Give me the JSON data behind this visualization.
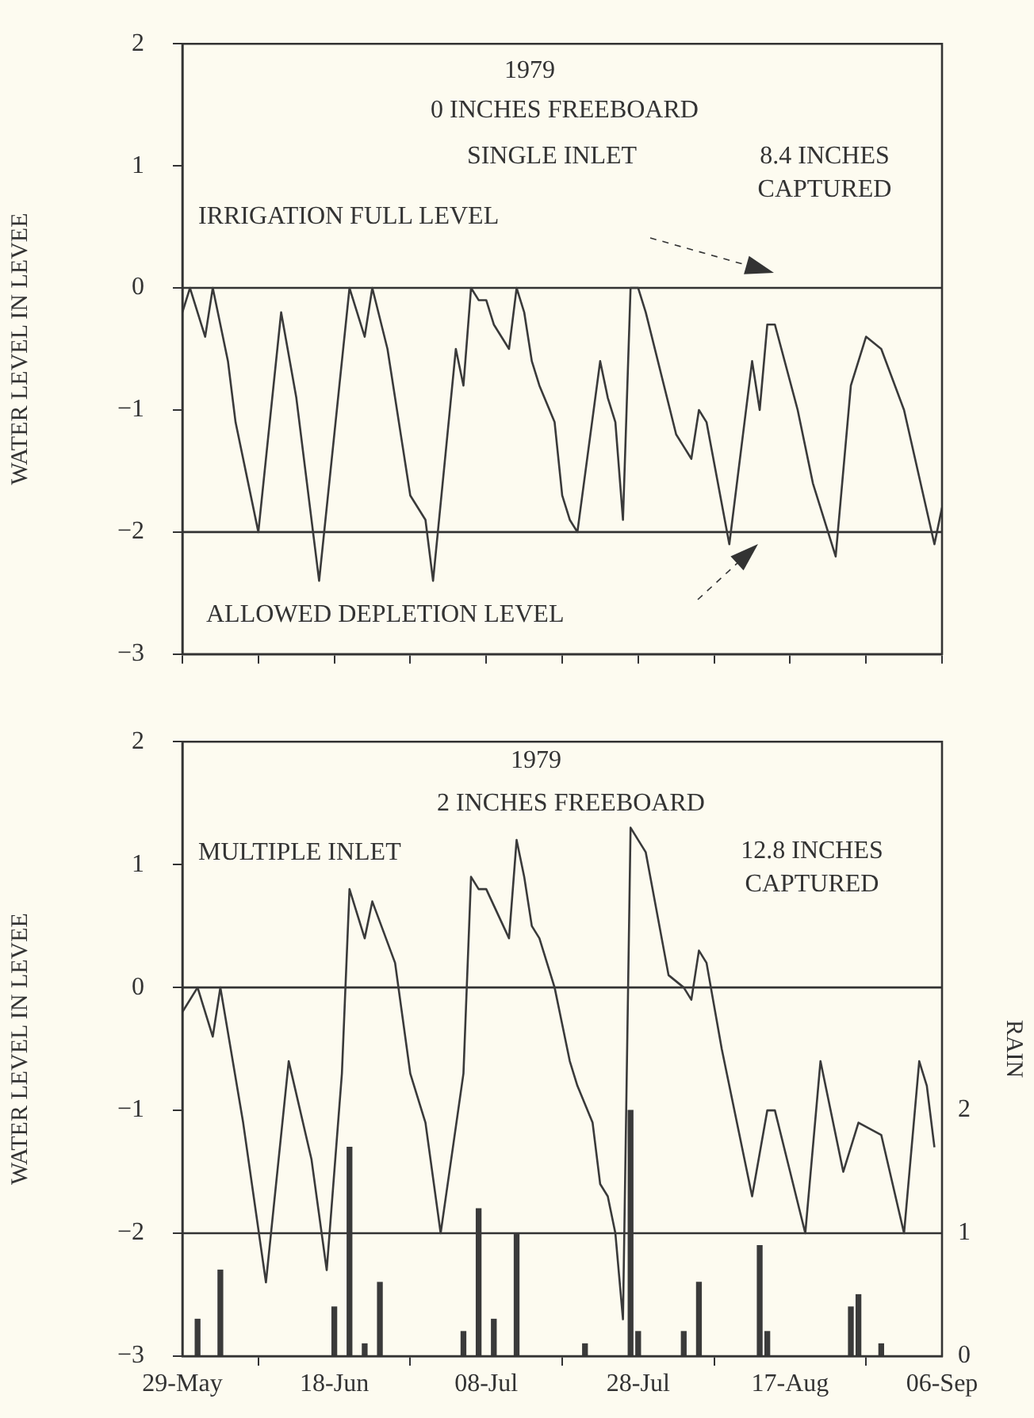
{
  "chart_data": [
    {
      "type": "line",
      "ylabel": "WATER LEVEL IN LEVEE",
      "annotations": [
        "1979",
        "0 INCHES FREEBOARD",
        "SINGLE INLET",
        "8.4 INCHES CAPTURED"
      ],
      "xlim": [
        "1979-05-29",
        "1979-09-06"
      ],
      "xticks": [
        {
          "value": "1979-05-29",
          "label": null
        },
        {
          "value": "1979-06-08",
          "label": null
        },
        {
          "value": "1979-06-18",
          "label": null
        },
        {
          "value": "1979-06-28",
          "label": null
        },
        {
          "value": "1979-07-08",
          "label": null
        },
        {
          "value": "1979-07-18",
          "label": null
        },
        {
          "value": "1979-07-28",
          "label": null
        },
        {
          "value": "1979-08-07",
          "label": null
        },
        {
          "value": "1979-08-17",
          "label": null
        },
        {
          "value": "1979-08-27",
          "label": null
        },
        {
          "value": "1979-09-06",
          "label": null
        }
      ],
      "ylim": [
        -3,
        2
      ],
      "yticks": [
        -3,
        -2,
        -1,
        0,
        1,
        2
      ],
      "grid": false,
      "tick_labels": "y",
      "ref_lines": [
        {
          "axis": "y",
          "value": 0,
          "label": "IRRIGATION FULL LEVEL"
        },
        {
          "axis": "y",
          "value": -2,
          "label": "ALLOWED DEPLETION LEVEL"
        }
      ],
      "series": [
        {
          "color": "#3a3a3a",
          "x": [
            "1979-05-29",
            "1979-05-30",
            "1979-06-01",
            "1979-06-02",
            "1979-06-04",
            "1979-06-05",
            "1979-06-08",
            "1979-06-11",
            "1979-06-13",
            "1979-06-16",
            "1979-06-20",
            "1979-06-22",
            "1979-06-23",
            "1979-06-25",
            "1979-06-28",
            "1979-06-30",
            "1979-07-01",
            "1979-07-04",
            "1979-07-05",
            "1979-07-06",
            "1979-07-07",
            "1979-07-08",
            "1979-07-09",
            "1979-07-11",
            "1979-07-12",
            "1979-07-13",
            "1979-07-14",
            "1979-07-15",
            "1979-07-17",
            "1979-07-18",
            "1979-07-19",
            "1979-07-20",
            "1979-07-23",
            "1979-07-24",
            "1979-07-25",
            "1979-07-26",
            "1979-07-27",
            "1979-07-28",
            "1979-07-29",
            "1979-08-02",
            "1979-08-03",
            "1979-08-04",
            "1979-08-05",
            "1979-08-06",
            "1979-08-09",
            "1979-08-12",
            "1979-08-13",
            "1979-08-14",
            "1979-08-15",
            "1979-08-18",
            "1979-08-20",
            "1979-08-23",
            "1979-08-25",
            "1979-08-27",
            "1979-08-29",
            "1979-09-01",
            "1979-09-05",
            "1979-09-06"
          ],
          "values": [
            -0.2,
            0,
            -0.4,
            0,
            -0.6,
            -1.1,
            -2.0,
            -0.2,
            -0.9,
            -2.4,
            0,
            -0.4,
            0,
            -0.5,
            -1.7,
            -1.9,
            -2.4,
            -0.5,
            -0.8,
            0,
            -0.1,
            -0.1,
            -0.3,
            -0.5,
            0,
            -0.2,
            -0.6,
            -0.8,
            -1.1,
            -1.7,
            -1.9,
            -2.0,
            -0.6,
            -0.9,
            -1.1,
            -1.9,
            0,
            0,
            -0.2,
            -1.2,
            -1.3,
            -1.4,
            -1.0,
            -1.1,
            -2.1,
            -0.6,
            -1.0,
            -0.3,
            -0.3,
            -1.0,
            -1.6,
            -2.2,
            -0.8,
            -0.4,
            -0.5,
            -1.0,
            -2.1,
            -1.8
          ]
        }
      ]
    },
    {
      "type": "line",
      "ylabel": "WATER LEVEL IN LEVEE",
      "y2label": "RAIN",
      "annotations": [
        "1979",
        "2 INCHES FREEBOARD",
        "MULTIPLE INLET",
        "12.8 INCHES CAPTURED"
      ],
      "xlim": [
        "1979-05-29",
        "1979-09-06"
      ],
      "xticks": [
        {
          "value": "1979-05-29",
          "label": "29-May"
        },
        {
          "value": "1979-06-18",
          "label": "18-Jun"
        },
        {
          "value": "1979-07-08",
          "label": "08-Jul"
        },
        {
          "value": "1979-07-28",
          "label": "28-Jul"
        },
        {
          "value": "1979-08-17",
          "label": "17-Aug"
        },
        {
          "value": "1979-09-06",
          "label": "06-Sep"
        }
      ],
      "ylim": [
        -3,
        2
      ],
      "yticks": [
        -3,
        -2,
        -1,
        0,
        1,
        2
      ],
      "y2lim": [
        0,
        5
      ],
      "y2ticks": [
        0,
        1,
        2
      ],
      "grid": false,
      "ref_lines": [
        {
          "axis": "y",
          "value": 0
        },
        {
          "axis": "y",
          "value": -2
        }
      ],
      "series": [
        {
          "color": "#3a3a3a",
          "x": [
            "1979-05-29",
            "1979-05-31",
            "1979-06-02",
            "1979-06-03",
            "1979-06-06",
            "1979-06-09",
            "1979-06-12",
            "1979-06-15",
            "1979-06-17",
            "1979-06-19",
            "1979-06-20",
            "1979-06-22",
            "1979-06-23",
            "1979-06-26",
            "1979-06-28",
            "1979-06-30",
            "1979-07-02",
            "1979-07-05",
            "1979-07-06",
            "1979-07-07",
            "1979-07-08",
            "1979-07-11",
            "1979-07-12",
            "1979-07-13",
            "1979-07-14",
            "1979-07-15",
            "1979-07-17",
            "1979-07-19",
            "1979-07-20",
            "1979-07-22",
            "1979-07-23",
            "1979-07-24",
            "1979-07-25",
            "1979-07-26",
            "1979-07-27",
            "1979-07-28",
            "1979-07-29",
            "1979-08-01",
            "1979-08-03",
            "1979-08-04",
            "1979-08-05",
            "1979-08-06",
            "1979-08-08",
            "1979-08-10",
            "1979-08-12",
            "1979-08-14",
            "1979-08-15",
            "1979-08-17",
            "1979-08-19",
            "1979-08-21",
            "1979-08-24",
            "1979-08-26",
            "1979-08-29",
            "1979-09-01",
            "1979-09-03",
            "1979-09-04",
            "1979-09-05"
          ],
          "values": [
            -0.2,
            0,
            -0.4,
            0,
            -1.1,
            -2.4,
            -0.6,
            -1.4,
            -2.3,
            -0.7,
            0.8,
            0.4,
            0.7,
            0.2,
            -0.7,
            -1.1,
            -2.0,
            -0.7,
            0.9,
            0.8,
            0.8,
            0.4,
            1.2,
            0.9,
            0.5,
            0.4,
            0,
            -0.6,
            -0.8,
            -1.1,
            -1.6,
            -1.7,
            -2.0,
            -2.7,
            1.3,
            1.2,
            1.1,
            0.1,
            0,
            -0.1,
            0.3,
            0.2,
            -0.5,
            -1.1,
            -1.7,
            -1.0,
            -1.0,
            -1.5,
            -2.0,
            -0.6,
            -1.5,
            -1.1,
            -1.2,
            -2.0,
            -0.6,
            -0.8,
            -1.3
          ]
        },
        {
          "type": "bar",
          "axis": "y2",
          "color": "#3a3a3a",
          "x": [
            "1979-05-31",
            "1979-06-03",
            "1979-06-18",
            "1979-06-20",
            "1979-06-22",
            "1979-06-24",
            "1979-07-05",
            "1979-07-07",
            "1979-07-09",
            "1979-07-12",
            "1979-07-21",
            "1979-07-27",
            "1979-07-28",
            "1979-08-03",
            "1979-08-05",
            "1979-08-13",
            "1979-08-14",
            "1979-08-25",
            "1979-08-26",
            "1979-08-29"
          ],
          "values": [
            0.3,
            0.7,
            0.4,
            1.7,
            0.1,
            0.6,
            0.2,
            1.2,
            0.3,
            1.0,
            0.1,
            2.0,
            0.2,
            0.2,
            0.6,
            0.9,
            0.2,
            0.4,
            0.5,
            0.1
          ]
        }
      ]
    }
  ]
}
